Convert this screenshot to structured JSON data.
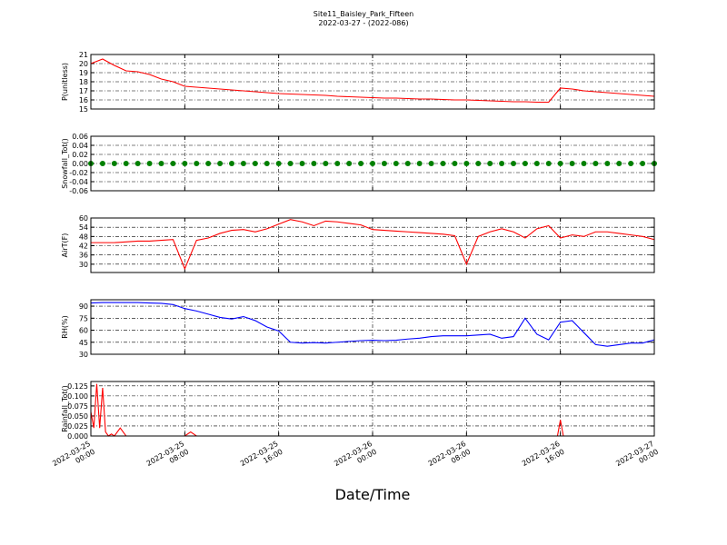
{
  "title": "Site11_Baisley_Park_Fifteen",
  "subtitle": "2022-03-27 - (2022-086)",
  "chart_data": [
    {
      "type": "line",
      "ylabel": "P(unitless)",
      "grid": true,
      "xlim": [
        "2022-03-25 00:00",
        "2022-03-27 00:00"
      ],
      "xticks": [
        "2022-03-25 00:00",
        "2022-03-25 08:00",
        "2022-03-25 16:00",
        "2022-03-26 00:00",
        "2022-03-26 08:00",
        "2022-03-26 16:00",
        "2022-03-27 00:00"
      ],
      "ylim": [
        15,
        21
      ],
      "yticks": [
        15,
        16,
        17,
        18,
        19,
        20,
        21
      ],
      "x": [
        "2022-03-25 00:00",
        "2022-03-25 01:00",
        "2022-03-25 02:00",
        "2022-03-25 03:00",
        "2022-03-25 04:00",
        "2022-03-25 05:00",
        "2022-03-25 06:00",
        "2022-03-25 07:00",
        "2022-03-25 08:00",
        "2022-03-25 09:00",
        "2022-03-25 10:00",
        "2022-03-25 11:00",
        "2022-03-25 12:00",
        "2022-03-25 13:00",
        "2022-03-25 14:00",
        "2022-03-25 15:00",
        "2022-03-25 16:00",
        "2022-03-25 17:00",
        "2022-03-25 18:00",
        "2022-03-25 19:00",
        "2022-03-25 20:00",
        "2022-03-25 21:00",
        "2022-03-25 22:00",
        "2022-03-25 23:00",
        "2022-03-26 00:00",
        "2022-03-26 01:00",
        "2022-03-26 02:00",
        "2022-03-26 03:00",
        "2022-03-26 04:00",
        "2022-03-26 05:00",
        "2022-03-26 06:00",
        "2022-03-26 07:00",
        "2022-03-26 08:00",
        "2022-03-26 09:00",
        "2022-03-26 10:00",
        "2022-03-26 11:00",
        "2022-03-26 12:00",
        "2022-03-26 13:00",
        "2022-03-26 14:00",
        "2022-03-26 15:00",
        "2022-03-26 16:00",
        "2022-03-26 17:00",
        "2022-03-26 18:00",
        "2022-03-26 19:00",
        "2022-03-26 20:00",
        "2022-03-26 21:00",
        "2022-03-26 22:00",
        "2022-03-26 23:00",
        "2022-03-27 00:00"
      ],
      "series": [
        {
          "color": "#ff0000",
          "values": [
            20.0,
            20.5,
            19.8,
            19.2,
            19.1,
            18.8,
            18.3,
            18.0,
            17.5,
            17.4,
            17.3,
            17.2,
            17.1,
            17.0,
            16.9,
            16.8,
            16.7,
            16.65,
            16.6,
            16.55,
            16.5,
            16.4,
            16.35,
            16.3,
            16.25,
            16.2,
            16.2,
            16.15,
            16.1,
            16.1,
            16.05,
            16.0,
            16.0,
            15.95,
            15.9,
            15.85,
            15.8,
            15.8,
            15.75,
            15.75,
            17.3,
            17.2,
            17.0,
            16.9,
            16.8,
            16.7,
            16.6,
            16.5,
            16.4
          ]
        }
      ]
    },
    {
      "type": "scatter",
      "ylabel": "Snowfall_Tot()",
      "grid": true,
      "xlim": [
        "2022-03-25 00:00",
        "2022-03-27 00:00"
      ],
      "xticks": [
        "2022-03-25 00:00",
        "2022-03-25 08:00",
        "2022-03-25 16:00",
        "2022-03-26 00:00",
        "2022-03-26 08:00",
        "2022-03-26 16:00",
        "2022-03-27 00:00"
      ],
      "ylim": [
        -0.06,
        0.06
      ],
      "yticks": [
        -0.06,
        -0.04,
        -0.02,
        {
          "value": 0,
          "label": "0.00"
        },
        0.02,
        0.04,
        0.06
      ],
      "x": [
        "2022-03-25 00:00",
        "2022-03-25 01:00",
        "2022-03-25 02:00",
        "2022-03-25 03:00",
        "2022-03-25 04:00",
        "2022-03-25 05:00",
        "2022-03-25 06:00",
        "2022-03-25 07:00",
        "2022-03-25 08:00",
        "2022-03-25 09:00",
        "2022-03-25 10:00",
        "2022-03-25 11:00",
        "2022-03-25 12:00",
        "2022-03-25 13:00",
        "2022-03-25 14:00",
        "2022-03-25 15:00",
        "2022-03-25 16:00",
        "2022-03-25 17:00",
        "2022-03-25 18:00",
        "2022-03-25 19:00",
        "2022-03-25 20:00",
        "2022-03-25 21:00",
        "2022-03-25 22:00",
        "2022-03-25 23:00",
        "2022-03-26 00:00",
        "2022-03-26 01:00",
        "2022-03-26 02:00",
        "2022-03-26 03:00",
        "2022-03-26 04:00",
        "2022-03-26 05:00",
        "2022-03-26 06:00",
        "2022-03-26 07:00",
        "2022-03-26 08:00",
        "2022-03-26 09:00",
        "2022-03-26 10:00",
        "2022-03-26 11:00",
        "2022-03-26 12:00",
        "2022-03-26 13:00",
        "2022-03-26 14:00",
        "2022-03-26 15:00",
        "2022-03-26 16:00",
        "2022-03-26 17:00",
        "2022-03-26 18:00",
        "2022-03-26 19:00",
        "2022-03-26 20:00",
        "2022-03-26 21:00",
        "2022-03-26 22:00",
        "2022-03-26 23:00",
        "2022-03-27 00:00"
      ],
      "series": [
        {
          "color": "#008000",
          "values": [
            0,
            0,
            0,
            0,
            0,
            0,
            0,
            0,
            0,
            0,
            0,
            0,
            0,
            0,
            0,
            0,
            0,
            0,
            0,
            0,
            0,
            0,
            0,
            0,
            0,
            0,
            0,
            0,
            0,
            0,
            0,
            0,
            0,
            0,
            0,
            0,
            0,
            0,
            0,
            0,
            0,
            0,
            0,
            0,
            0,
            0,
            0,
            0,
            0
          ]
        }
      ]
    },
    {
      "type": "line",
      "ylabel": "AirT(F)",
      "grid": true,
      "xlim": [
        "2022-03-25 00:00",
        "2022-03-27 00:00"
      ],
      "xticks": [
        "2022-03-25 00:00",
        "2022-03-25 08:00",
        "2022-03-25 16:00",
        "2022-03-26 00:00",
        "2022-03-26 08:00",
        "2022-03-26 16:00",
        "2022-03-27 00:00"
      ],
      "ylim": [
        24.6,
        60
      ],
      "yticks": [
        30,
        36,
        42,
        48,
        54,
        60
      ],
      "x": [
        "2022-03-25 00:00",
        "2022-03-25 01:00",
        "2022-03-25 02:00",
        "2022-03-25 03:00",
        "2022-03-25 04:00",
        "2022-03-25 05:00",
        "2022-03-25 06:00",
        "2022-03-25 07:00",
        "2022-03-25 08:00",
        "2022-03-25 09:00",
        "2022-03-25 10:00",
        "2022-03-25 11:00",
        "2022-03-25 12:00",
        "2022-03-25 13:00",
        "2022-03-25 14:00",
        "2022-03-25 15:00",
        "2022-03-25 16:00",
        "2022-03-25 17:00",
        "2022-03-25 18:00",
        "2022-03-25 19:00",
        "2022-03-25 20:00",
        "2022-03-25 21:00",
        "2022-03-25 22:00",
        "2022-03-25 23:00",
        "2022-03-26 00:00",
        "2022-03-26 01:00",
        "2022-03-26 02:00",
        "2022-03-26 03:00",
        "2022-03-26 04:00",
        "2022-03-26 05:00",
        "2022-03-26 06:00",
        "2022-03-26 07:00",
        "2022-03-26 08:00",
        "2022-03-26 09:00",
        "2022-03-26 10:00",
        "2022-03-26 11:00",
        "2022-03-26 12:00",
        "2022-03-26 13:00",
        "2022-03-26 14:00",
        "2022-03-26 15:00",
        "2022-03-26 16:00",
        "2022-03-26 17:00",
        "2022-03-26 18:00",
        "2022-03-26 19:00",
        "2022-03-26 20:00",
        "2022-03-26 21:00",
        "2022-03-26 22:00",
        "2022-03-26 23:00",
        "2022-03-27 00:00"
      ],
      "series": [
        {
          "color": "#ff0000",
          "values": [
            44,
            44,
            44,
            44.5,
            45,
            45,
            45.5,
            46,
            27,
            45.5,
            47,
            50,
            52,
            52.5,
            51,
            53,
            56,
            59,
            57.5,
            55,
            58,
            57.5,
            56.5,
            55.5,
            52.5,
            52,
            51.5,
            51,
            50.5,
            50,
            49.5,
            48.5,
            30,
            48,
            51,
            53,
            51,
            47,
            53,
            55,
            47,
            49,
            48,
            51,
            51,
            50,
            49,
            48,
            46
          ]
        }
      ]
    },
    {
      "type": "line",
      "ylabel": "RH(%)",
      "grid": true,
      "xlim": [
        "2022-03-25 00:00",
        "2022-03-27 00:00"
      ],
      "xticks": [
        "2022-03-25 00:00",
        "2022-03-25 08:00",
        "2022-03-25 16:00",
        "2022-03-26 00:00",
        "2022-03-26 08:00",
        "2022-03-26 16:00",
        "2022-03-27 00:00"
      ],
      "ylim": [
        30,
        98
      ],
      "yticks": [
        30,
        45,
        60,
        75,
        90
      ],
      "x": [
        "2022-03-25 00:00",
        "2022-03-25 01:00",
        "2022-03-25 02:00",
        "2022-03-25 03:00",
        "2022-03-25 04:00",
        "2022-03-25 05:00",
        "2022-03-25 06:00",
        "2022-03-25 07:00",
        "2022-03-25 08:00",
        "2022-03-25 09:00",
        "2022-03-25 10:00",
        "2022-03-25 11:00",
        "2022-03-25 12:00",
        "2022-03-25 13:00",
        "2022-03-25 14:00",
        "2022-03-25 15:00",
        "2022-03-25 16:00",
        "2022-03-25 17:00",
        "2022-03-25 18:00",
        "2022-03-25 19:00",
        "2022-03-25 20:00",
        "2022-03-25 21:00",
        "2022-03-25 22:00",
        "2022-03-25 23:00",
        "2022-03-26 00:00",
        "2022-03-26 01:00",
        "2022-03-26 02:00",
        "2022-03-26 03:00",
        "2022-03-26 04:00",
        "2022-03-26 05:00",
        "2022-03-26 06:00",
        "2022-03-26 07:00",
        "2022-03-26 08:00",
        "2022-03-26 09:00",
        "2022-03-26 10:00",
        "2022-03-26 11:00",
        "2022-03-26 12:00",
        "2022-03-26 13:00",
        "2022-03-26 14:00",
        "2022-03-26 15:00",
        "2022-03-26 16:00",
        "2022-03-26 17:00",
        "2022-03-26 18:00",
        "2022-03-26 19:00",
        "2022-03-26 20:00",
        "2022-03-26 21:00",
        "2022-03-26 22:00",
        "2022-03-26 23:00",
        "2022-03-27 00:00"
      ],
      "series": [
        {
          "color": "#0000ff",
          "values": [
            94,
            94.5,
            94.5,
            94.5,
            94.5,
            94,
            93.5,
            92,
            87,
            84,
            80,
            76,
            74,
            77,
            72,
            64,
            59,
            45,
            44,
            44.5,
            44,
            45,
            46,
            47,
            47.5,
            47,
            47.5,
            49,
            50,
            52,
            53,
            53,
            53,
            54,
            55,
            50,
            52,
            75,
            55,
            48,
            70,
            72,
            57,
            42,
            40,
            42,
            44,
            44,
            48
          ]
        }
      ]
    },
    {
      "type": "line",
      "ylabel": "Rainfall_Tot()",
      "xlabel": "Date/Time",
      "grid": true,
      "xlim": [
        "2022-03-25 00:00",
        "2022-03-27 00:00"
      ],
      "xticks": [
        "2022-03-25 00:00",
        "2022-03-25 08:00",
        "2022-03-25 16:00",
        "2022-03-26 00:00",
        "2022-03-26 08:00",
        "2022-03-26 16:00",
        "2022-03-27 00:00"
      ],
      "ylim": [
        0,
        0.136
      ],
      "yticks": [
        {
          "value": 0,
          "label": "0.000"
        },
        0.025,
        {
          "value": 0.05,
          "label": "0.050"
        },
        0.075,
        {
          "value": 0.1,
          "label": "0.100"
        },
        0.125
      ],
      "x": [
        "2022-03-25 00:00",
        "2022-03-25 00:15",
        "2022-03-25 00:30",
        "2022-03-25 00:45",
        "2022-03-25 01:00",
        "2022-03-25 01:15",
        "2022-03-25 01:30",
        "2022-03-25 01:45",
        "2022-03-25 02:00",
        "2022-03-25 02:30",
        "2022-03-25 03:00",
        "2022-03-25 08:00",
        "2022-03-25 08:30",
        "2022-03-25 09:00",
        "2022-03-26 15:45",
        "2022-03-26 16:00",
        "2022-03-26 16:15",
        "2022-03-27 00:00"
      ],
      "series": [
        {
          "color": "#ff0000",
          "values": [
            0.06,
            0.02,
            0.13,
            0.02,
            0.12,
            0.01,
            0,
            0.005,
            0,
            0.02,
            0,
            0,
            0.01,
            0,
            0,
            0.04,
            0,
            0
          ]
        }
      ]
    }
  ]
}
